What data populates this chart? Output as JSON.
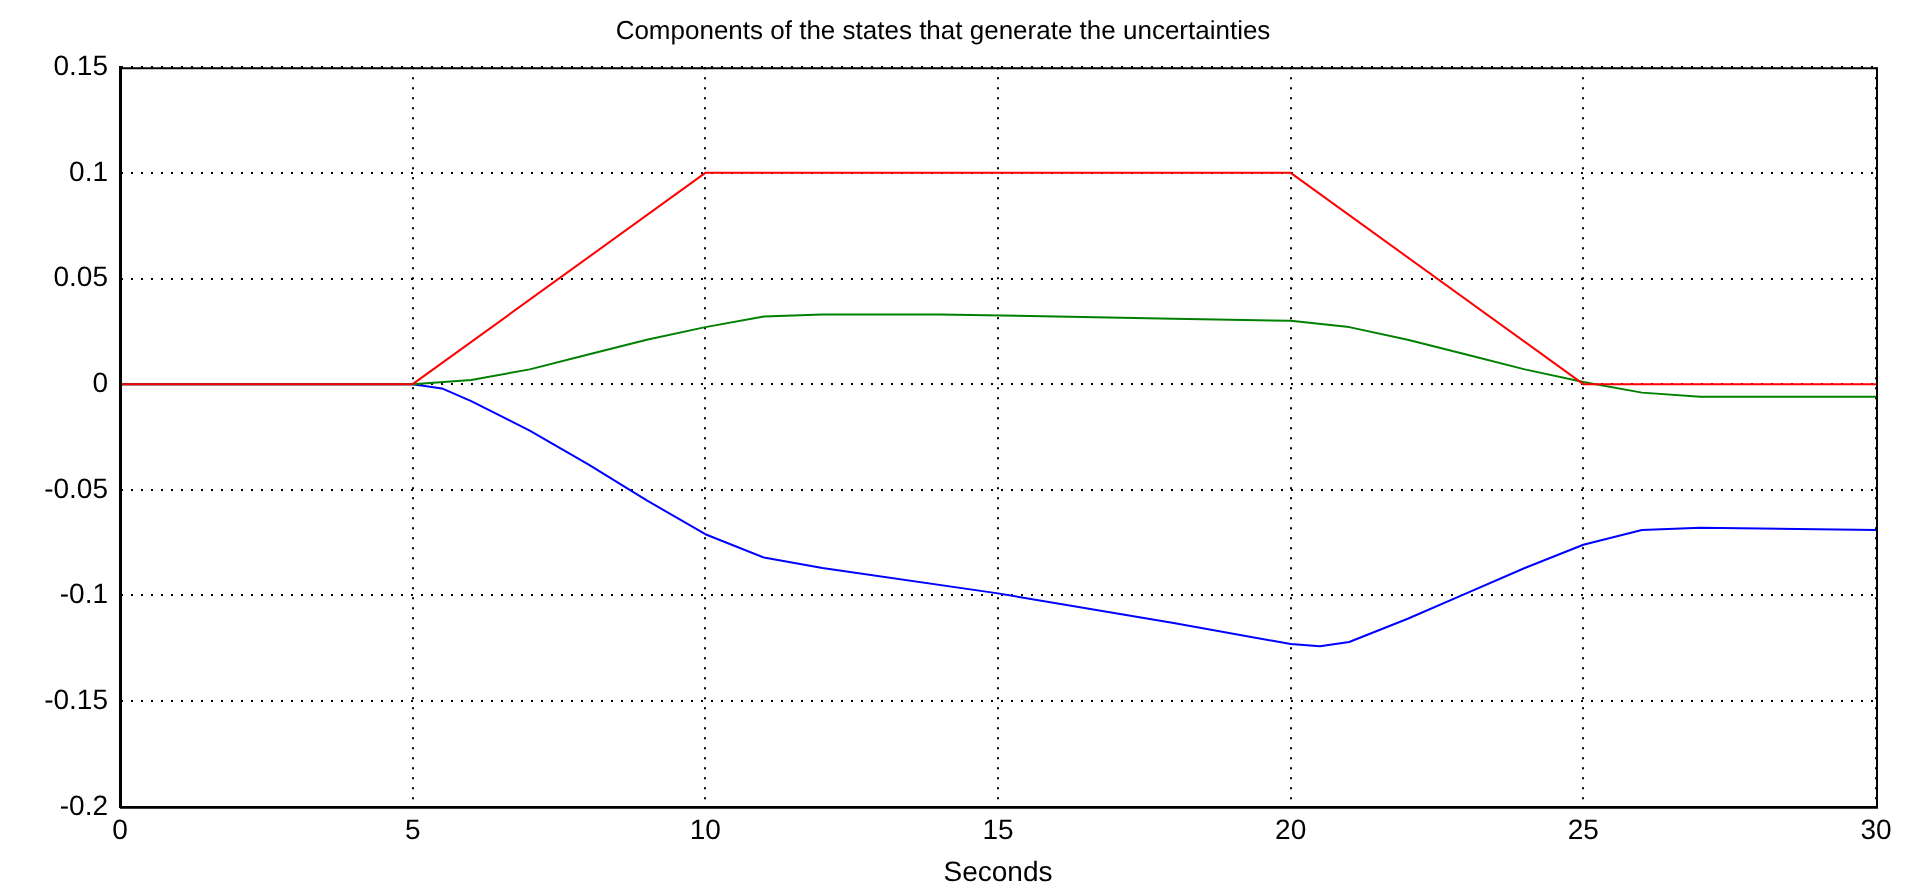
{
  "chart_data": {
    "type": "line",
    "title": "Components of the states that generate the uncertainties",
    "xlabel": "Seconds",
    "xlim": [
      0,
      30
    ],
    "xticks": [
      0,
      5,
      10,
      15,
      20,
      25,
      30
    ],
    "ylim": [
      -0.2,
      0.15
    ],
    "yticks": [
      -0.2,
      -0.15,
      -0.1,
      -0.05,
      0,
      0.05,
      0.1,
      0.15
    ],
    "grid": true,
    "legend": false,
    "line_style": "solid",
    "marker": "none",
    "series": [
      {
        "color": "#0000ff",
        "x": [
          0,
          5,
          5.5,
          6,
          7,
          8,
          9,
          10,
          11,
          12,
          15,
          18,
          20,
          20.5,
          21,
          22,
          23,
          24,
          25,
          26,
          27,
          30
        ],
        "values": [
          0,
          0,
          -0.002,
          -0.008,
          -0.022,
          -0.038,
          -0.055,
          -0.071,
          -0.082,
          -0.087,
          -0.099,
          -0.113,
          -0.123,
          -0.124,
          -0.122,
          -0.111,
          -0.099,
          -0.087,
          -0.076,
          -0.069,
          -0.068,
          -0.069
        ]
      },
      {
        "color": "#008000",
        "x": [
          0,
          5,
          6,
          7,
          8,
          9,
          10,
          11,
          12,
          14,
          16,
          18,
          20,
          21,
          22,
          23,
          24,
          25,
          26,
          27,
          30
        ],
        "values": [
          0,
          0,
          0.002,
          0.007,
          0.014,
          0.021,
          0.027,
          0.032,
          0.033,
          0.033,
          0.032,
          0.031,
          0.03,
          0.027,
          0.021,
          0.014,
          0.007,
          0.001,
          -0.004,
          -0.006,
          -0.006
        ]
      },
      {
        "color": "#ff0000",
        "x": [
          0,
          5,
          10,
          20,
          25,
          30
        ],
        "values": [
          0,
          0,
          0.1,
          0.1,
          0,
          0
        ]
      }
    ]
  }
}
